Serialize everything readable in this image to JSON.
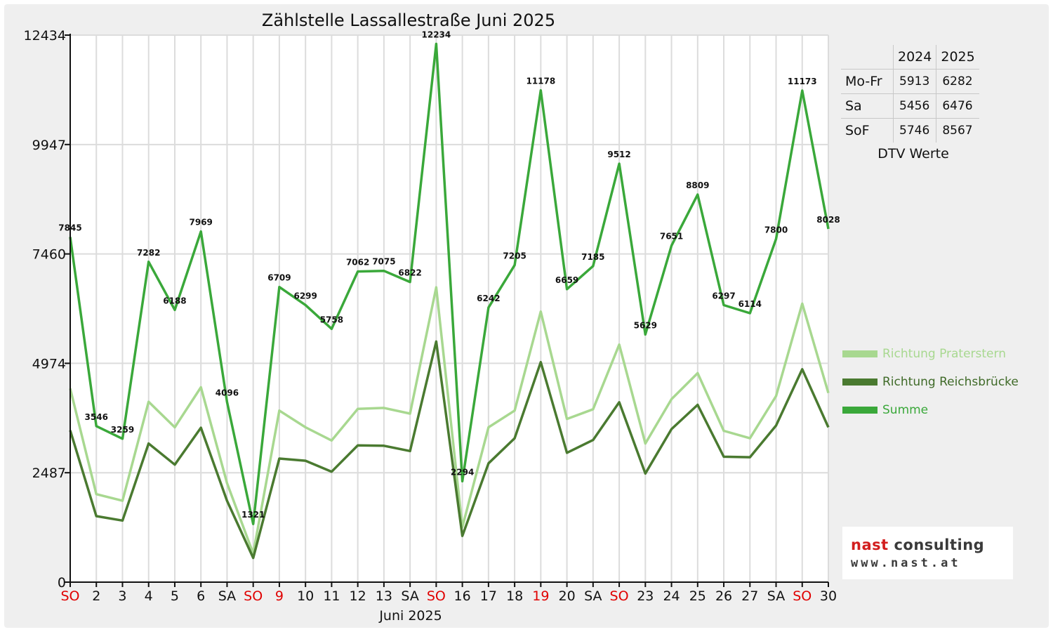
{
  "chart_data": {
    "type": "line",
    "title": "Zählstelle Lassallestraße Juni 2025",
    "xlabel": "Juni 2025",
    "ylabel": "",
    "ylim": [
      0,
      12434
    ],
    "yticks": [
      0,
      2487,
      4974,
      7460,
      9947,
      12434
    ],
    "grid": true,
    "legend_position": "right",
    "categories": [
      "SO",
      "2",
      "3",
      "4",
      "5",
      "6",
      "SA",
      "SO",
      "9",
      "10",
      "11",
      "12",
      "13",
      "SA",
      "SO",
      "16",
      "17",
      "18",
      "19",
      "20",
      "SA",
      "SO",
      "23",
      "24",
      "25",
      "26",
      "27",
      "SA",
      "SO",
      "30"
    ],
    "category_colors": [
      "#e00000",
      "#111111",
      "#111111",
      "#111111",
      "#111111",
      "#111111",
      "#111111",
      "#e00000",
      "#e00000",
      "#111111",
      "#111111",
      "#111111",
      "#111111",
      "#111111",
      "#e00000",
      "#111111",
      "#111111",
      "#111111",
      "#e00000",
      "#111111",
      "#111111",
      "#e00000",
      "#111111",
      "#111111",
      "#111111",
      "#111111",
      "#111111",
      "#111111",
      "#e00000",
      "#111111"
    ],
    "series": [
      {
        "name": "Richtung Praterstern",
        "color": "#a8d890",
        "values": [
          4400,
          2000,
          1850,
          4100,
          3520,
          4430,
          2250,
          650,
          3900,
          3520,
          3220,
          3940,
          3960,
          3830,
          6700,
          1250,
          3520,
          3900,
          6150,
          3710,
          3930,
          5400,
          3150,
          4160,
          4750,
          3440,
          3270,
          4230,
          6330,
          4300
        ],
        "labels": false
      },
      {
        "name": "Richtung Reichsbrücke",
        "color": "#4a7a30",
        "values": [
          3450,
          1500,
          1400,
          3150,
          2670,
          3510,
          1850,
          550,
          2810,
          2760,
          2510,
          3110,
          3100,
          2980,
          5470,
          1050,
          2700,
          3270,
          5000,
          2940,
          3230,
          4090,
          2470,
          3480,
          4030,
          2850,
          2840,
          3560,
          4840,
          3520
        ],
        "labels": false
      },
      {
        "name": "Summe",
        "color": "#3aa83a",
        "values": [
          7845,
          3546,
          3259,
          7282,
          6188,
          7969,
          4096,
          1321,
          6709,
          6299,
          5758,
          7062,
          7075,
          6822,
          12234,
          2294,
          6242,
          7205,
          11178,
          6659,
          7185,
          9512,
          5629,
          7651,
          8809,
          6297,
          6114,
          7800,
          11173,
          8028
        ],
        "labels": true
      }
    ]
  },
  "dtv": {
    "headers": [
      "",
      "2024",
      "2025"
    ],
    "rows": [
      {
        "label": "Mo-Fr",
        "v2024": "5913",
        "v2025": "6282"
      },
      {
        "label": "Sa",
        "v2024": "5456",
        "v2025": "6476"
      },
      {
        "label": "SoF",
        "v2024": "5746",
        "v2025": "8567"
      }
    ],
    "caption": "DTV Werte"
  },
  "legend_items": [
    {
      "label": "Richtung Praterstern",
      "color": "#a8d890"
    },
    {
      "label": "Richtung Reichsbrücke",
      "color": "#4a7a30"
    },
    {
      "label": "Summe",
      "color": "#3aa83a"
    }
  ],
  "logo": {
    "line1_a": "nast",
    "line1_b": "consulting",
    "line2": "www.nast.at"
  }
}
